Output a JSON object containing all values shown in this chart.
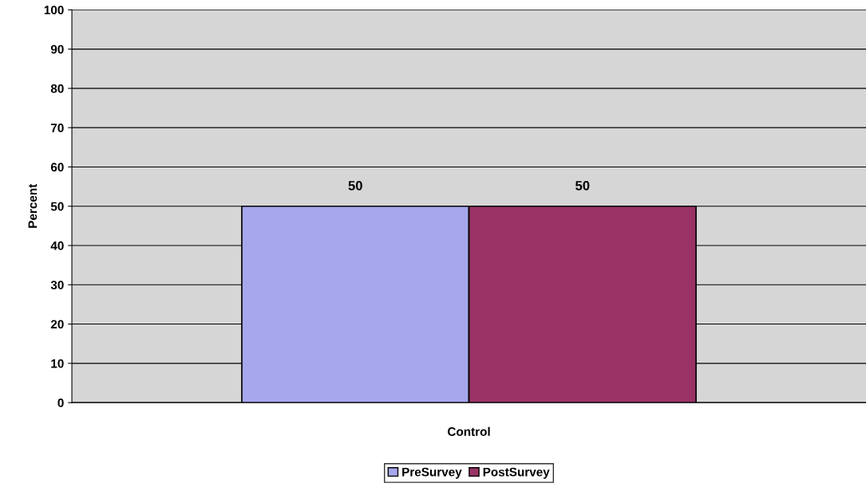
{
  "chart_data": {
    "type": "bar",
    "ylabel": "Percent",
    "categories": [
      "Control"
    ],
    "series": [
      {
        "name": "PreSurvey",
        "color": "#a7a7ee",
        "values": [
          50
        ]
      },
      {
        "name": "PostSurvey",
        "color": "#993366",
        "values": [
          50
        ]
      }
    ],
    "ylim": [
      0,
      100
    ],
    "yticks": [
      0,
      10,
      20,
      30,
      40,
      50,
      60,
      70,
      80,
      90,
      100
    ],
    "grid": "y",
    "legend": "bottom",
    "data_labels": true
  }
}
